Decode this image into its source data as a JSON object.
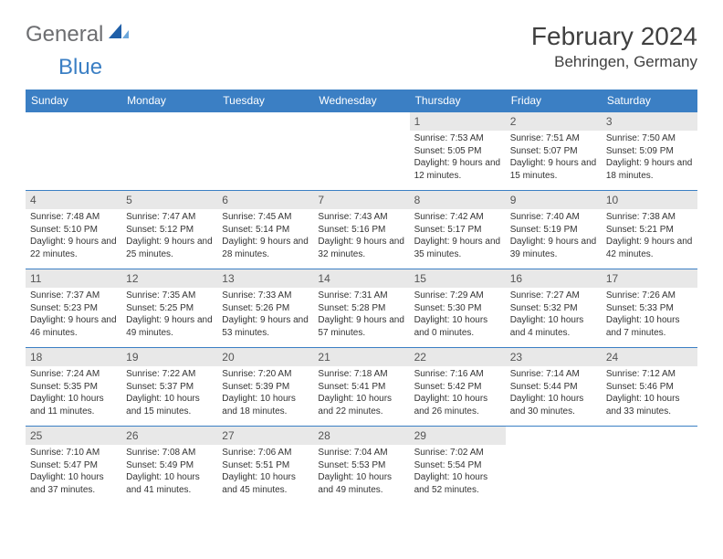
{
  "logo": {
    "text1": "General",
    "text2": "Blue"
  },
  "title": "February 2024",
  "location": "Behringen, Germany",
  "colors": {
    "header_bg": "#3b7fc4",
    "header_text": "#ffffff",
    "daynum_bg": "#e8e8e8",
    "border": "#3b7fc4",
    "logo_gray": "#6d6e71",
    "logo_blue": "#3b7fc4"
  },
  "day_labels": [
    "Sunday",
    "Monday",
    "Tuesday",
    "Wednesday",
    "Thursday",
    "Friday",
    "Saturday"
  ],
  "weeks": [
    [
      null,
      null,
      null,
      null,
      {
        "n": "1",
        "sr": "Sunrise: 7:53 AM",
        "ss": "Sunset: 5:05 PM",
        "dl": "Daylight: 9 hours and 12 minutes."
      },
      {
        "n": "2",
        "sr": "Sunrise: 7:51 AM",
        "ss": "Sunset: 5:07 PM",
        "dl": "Daylight: 9 hours and 15 minutes."
      },
      {
        "n": "3",
        "sr": "Sunrise: 7:50 AM",
        "ss": "Sunset: 5:09 PM",
        "dl": "Daylight: 9 hours and 18 minutes."
      }
    ],
    [
      {
        "n": "4",
        "sr": "Sunrise: 7:48 AM",
        "ss": "Sunset: 5:10 PM",
        "dl": "Daylight: 9 hours and 22 minutes."
      },
      {
        "n": "5",
        "sr": "Sunrise: 7:47 AM",
        "ss": "Sunset: 5:12 PM",
        "dl": "Daylight: 9 hours and 25 minutes."
      },
      {
        "n": "6",
        "sr": "Sunrise: 7:45 AM",
        "ss": "Sunset: 5:14 PM",
        "dl": "Daylight: 9 hours and 28 minutes."
      },
      {
        "n": "7",
        "sr": "Sunrise: 7:43 AM",
        "ss": "Sunset: 5:16 PM",
        "dl": "Daylight: 9 hours and 32 minutes."
      },
      {
        "n": "8",
        "sr": "Sunrise: 7:42 AM",
        "ss": "Sunset: 5:17 PM",
        "dl": "Daylight: 9 hours and 35 minutes."
      },
      {
        "n": "9",
        "sr": "Sunrise: 7:40 AM",
        "ss": "Sunset: 5:19 PM",
        "dl": "Daylight: 9 hours and 39 minutes."
      },
      {
        "n": "10",
        "sr": "Sunrise: 7:38 AM",
        "ss": "Sunset: 5:21 PM",
        "dl": "Daylight: 9 hours and 42 minutes."
      }
    ],
    [
      {
        "n": "11",
        "sr": "Sunrise: 7:37 AM",
        "ss": "Sunset: 5:23 PM",
        "dl": "Daylight: 9 hours and 46 minutes."
      },
      {
        "n": "12",
        "sr": "Sunrise: 7:35 AM",
        "ss": "Sunset: 5:25 PM",
        "dl": "Daylight: 9 hours and 49 minutes."
      },
      {
        "n": "13",
        "sr": "Sunrise: 7:33 AM",
        "ss": "Sunset: 5:26 PM",
        "dl": "Daylight: 9 hours and 53 minutes."
      },
      {
        "n": "14",
        "sr": "Sunrise: 7:31 AM",
        "ss": "Sunset: 5:28 PM",
        "dl": "Daylight: 9 hours and 57 minutes."
      },
      {
        "n": "15",
        "sr": "Sunrise: 7:29 AM",
        "ss": "Sunset: 5:30 PM",
        "dl": "Daylight: 10 hours and 0 minutes."
      },
      {
        "n": "16",
        "sr": "Sunrise: 7:27 AM",
        "ss": "Sunset: 5:32 PM",
        "dl": "Daylight: 10 hours and 4 minutes."
      },
      {
        "n": "17",
        "sr": "Sunrise: 7:26 AM",
        "ss": "Sunset: 5:33 PM",
        "dl": "Daylight: 10 hours and 7 minutes."
      }
    ],
    [
      {
        "n": "18",
        "sr": "Sunrise: 7:24 AM",
        "ss": "Sunset: 5:35 PM",
        "dl": "Daylight: 10 hours and 11 minutes."
      },
      {
        "n": "19",
        "sr": "Sunrise: 7:22 AM",
        "ss": "Sunset: 5:37 PM",
        "dl": "Daylight: 10 hours and 15 minutes."
      },
      {
        "n": "20",
        "sr": "Sunrise: 7:20 AM",
        "ss": "Sunset: 5:39 PM",
        "dl": "Daylight: 10 hours and 18 minutes."
      },
      {
        "n": "21",
        "sr": "Sunrise: 7:18 AM",
        "ss": "Sunset: 5:41 PM",
        "dl": "Daylight: 10 hours and 22 minutes."
      },
      {
        "n": "22",
        "sr": "Sunrise: 7:16 AM",
        "ss": "Sunset: 5:42 PM",
        "dl": "Daylight: 10 hours and 26 minutes."
      },
      {
        "n": "23",
        "sr": "Sunrise: 7:14 AM",
        "ss": "Sunset: 5:44 PM",
        "dl": "Daylight: 10 hours and 30 minutes."
      },
      {
        "n": "24",
        "sr": "Sunrise: 7:12 AM",
        "ss": "Sunset: 5:46 PM",
        "dl": "Daylight: 10 hours and 33 minutes."
      }
    ],
    [
      {
        "n": "25",
        "sr": "Sunrise: 7:10 AM",
        "ss": "Sunset: 5:47 PM",
        "dl": "Daylight: 10 hours and 37 minutes."
      },
      {
        "n": "26",
        "sr": "Sunrise: 7:08 AM",
        "ss": "Sunset: 5:49 PM",
        "dl": "Daylight: 10 hours and 41 minutes."
      },
      {
        "n": "27",
        "sr": "Sunrise: 7:06 AM",
        "ss": "Sunset: 5:51 PM",
        "dl": "Daylight: 10 hours and 45 minutes."
      },
      {
        "n": "28",
        "sr": "Sunrise: 7:04 AM",
        "ss": "Sunset: 5:53 PM",
        "dl": "Daylight: 10 hours and 49 minutes."
      },
      {
        "n": "29",
        "sr": "Sunrise: 7:02 AM",
        "ss": "Sunset: 5:54 PM",
        "dl": "Daylight: 10 hours and 52 minutes."
      },
      null,
      null
    ]
  ]
}
